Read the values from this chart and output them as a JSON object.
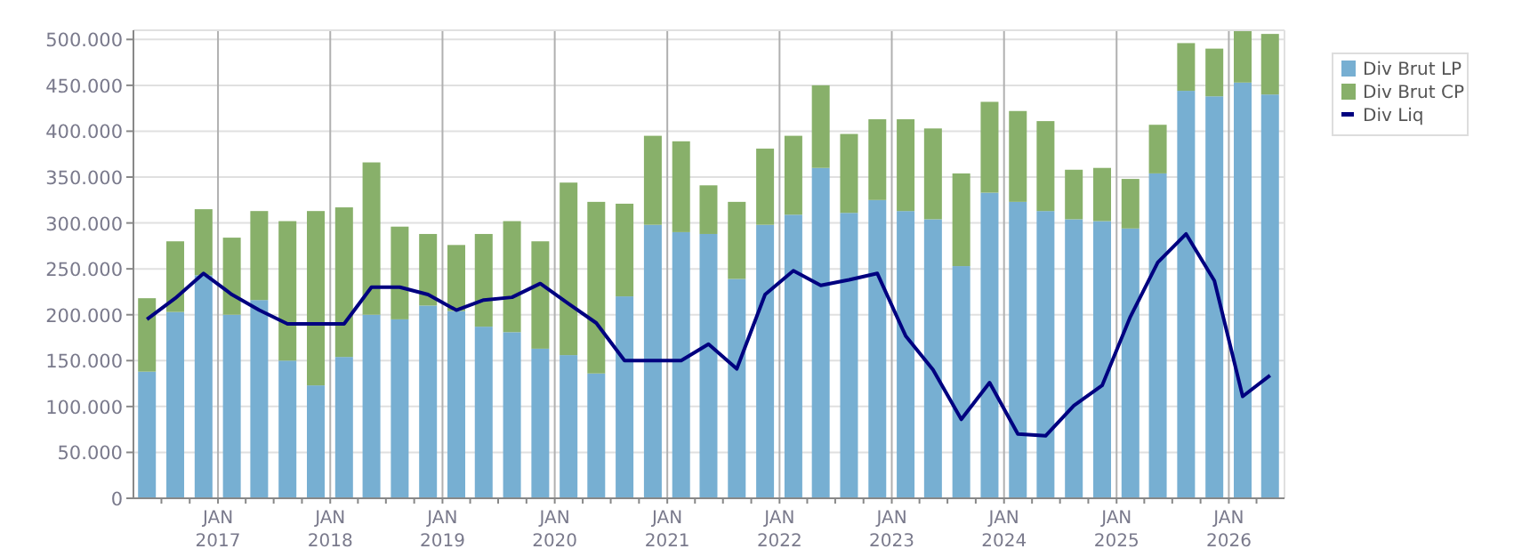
{
  "chart_data": {
    "type": "bar",
    "stacked": true,
    "x": [
      "2016-05-15",
      "2016-08-15",
      "2016-11-15",
      "2017-02-15",
      "2017-05-15",
      "2017-08-15",
      "2017-11-15",
      "2018-02-15",
      "2018-05-15",
      "2018-08-15",
      "2018-11-15",
      "2019-02-15",
      "2019-05-15",
      "2019-08-15",
      "2019-11-15",
      "2020-02-15",
      "2020-05-15",
      "2020-08-15",
      "2020-11-15",
      "2021-02-15",
      "2021-05-15",
      "2021-08-15",
      "2021-11-15",
      "2022-02-15",
      "2022-05-15",
      "2022-08-15",
      "2022-11-15",
      "2023-02-15",
      "2023-05-15",
      "2023-08-15",
      "2023-11-15",
      "2024-02-15",
      "2024-05-15",
      "2024-08-15",
      "2024-11-15",
      "2025-02-15",
      "2025-05-15",
      "2025-08-15",
      "2025-11-15",
      "2026-02-15",
      "2026-05-15"
    ],
    "series": [
      {
        "name": "Div Brut LP",
        "color": "#77afd2",
        "values": [
          138000,
          203000,
          243000,
          200000,
          216000,
          150000,
          123000,
          154000,
          200000,
          195000,
          210000,
          204000,
          187000,
          181000,
          163000,
          156000,
          136000,
          220000,
          298000,
          290000,
          288000,
          239000,
          298000,
          309000,
          360000,
          311000,
          325000,
          313000,
          304000,
          253000,
          333000,
          323000,
          313000,
          304000,
          302000,
          294000,
          354000,
          444000,
          438000,
          453000,
          440000
        ]
      },
      {
        "name": "Div Brut CP",
        "color": "#88b06a",
        "values": [
          80000,
          77000,
          72000,
          84000,
          97000,
          152000,
          190000,
          163000,
          166000,
          101000,
          78000,
          72000,
          101000,
          121000,
          117000,
          188000,
          187000,
          101000,
          97000,
          99000,
          53000,
          84000,
          83000,
          86000,
          90000,
          86000,
          88000,
          100000,
          99000,
          101000,
          99000,
          99000,
          98000,
          54000,
          58000,
          54000,
          53000,
          52000,
          52000,
          56000,
          66000
        ]
      },
      {
        "name": "Div Liq",
        "type": "line",
        "color": "#000080",
        "values": [
          195000,
          218000,
          245000,
          222000,
          205000,
          190000,
          190000,
          190000,
          230000,
          230000,
          222000,
          205000,
          216000,
          219000,
          234000,
          212000,
          191000,
          150000,
          150000,
          150000,
          168000,
          141000,
          222000,
          248000,
          232000,
          238000,
          245000,
          177000,
          140000,
          86000,
          126000,
          70000,
          68000,
          101000,
          123000,
          198000,
          257000,
          288000,
          237000,
          111000,
          134000
        ]
      }
    ],
    "xlim": [
      "2016-04-01",
      "2026-07-01"
    ],
    "xticks": [
      {
        "value": "2016-07-01",
        "label": null
      },
      {
        "value": "2016-10-01",
        "label": null
      },
      {
        "value": "2017-01-01",
        "label": "JAN\n2017"
      },
      {
        "value": "2017-04-01",
        "label": null
      },
      {
        "value": "2017-07-01",
        "label": null
      },
      {
        "value": "2017-10-01",
        "label": null
      },
      {
        "value": "2018-01-01",
        "label": "JAN\n2018"
      },
      {
        "value": "2018-04-01",
        "label": null
      },
      {
        "value": "2018-07-01",
        "label": null
      },
      {
        "value": "2018-10-01",
        "label": null
      },
      {
        "value": "2019-01-01",
        "label": "JAN\n2019"
      },
      {
        "value": "2019-04-01",
        "label": null
      },
      {
        "value": "2019-07-01",
        "label": null
      },
      {
        "value": "2019-10-01",
        "label": null
      },
      {
        "value": "2020-01-01",
        "label": "JAN\n2020"
      },
      {
        "value": "2020-04-01",
        "label": null
      },
      {
        "value": "2020-07-01",
        "label": null
      },
      {
        "value": "2020-10-01",
        "label": null
      },
      {
        "value": "2021-01-01",
        "label": "JAN\n2021"
      },
      {
        "value": "2021-04-01",
        "label": null
      },
      {
        "value": "2021-07-01",
        "label": null
      },
      {
        "value": "2021-10-01",
        "label": null
      },
      {
        "value": "2022-01-01",
        "label": "JAN\n2022"
      },
      {
        "value": "2022-04-01",
        "label": null
      },
      {
        "value": "2022-07-01",
        "label": null
      },
      {
        "value": "2022-10-01",
        "label": null
      },
      {
        "value": "2023-01-01",
        "label": "JAN\n2023"
      },
      {
        "value": "2023-04-01",
        "label": null
      },
      {
        "value": "2023-07-01",
        "label": null
      },
      {
        "value": "2023-10-01",
        "label": null
      },
      {
        "value": "2024-01-01",
        "label": "JAN\n2024"
      },
      {
        "value": "2024-04-01",
        "label": null
      },
      {
        "value": "2024-07-01",
        "label": null
      },
      {
        "value": "2024-10-01",
        "label": null
      },
      {
        "value": "2025-01-01",
        "label": "JAN\n2025"
      },
      {
        "value": "2025-04-01",
        "label": null
      },
      {
        "value": "2025-07-01",
        "label": null
      },
      {
        "value": "2025-10-01",
        "label": null
      },
      {
        "value": "2026-01-01",
        "label": "JAN\n2026"
      },
      {
        "value": "2026-04-01",
        "label": null
      }
    ],
    "ylim": [
      0,
      510000
    ],
    "yticks": [
      0,
      {
        "value": 50000,
        "label": "50.000"
      },
      {
        "value": 100000,
        "label": "100.000"
      },
      {
        "value": 150000,
        "label": "150.000"
      },
      {
        "value": 200000,
        "label": "200.000"
      },
      {
        "value": 250000,
        "label": "250.000"
      },
      {
        "value": 300000,
        "label": "300.000"
      },
      {
        "value": 350000,
        "label": "350.000"
      },
      {
        "value": 400000,
        "label": "400.000"
      },
      {
        "value": 450000,
        "label": "450.000"
      },
      {
        "value": 500000,
        "label": "500.000"
      }
    ],
    "grid": true,
    "legend": "right",
    "marker": "none",
    "line_style": "solid"
  }
}
